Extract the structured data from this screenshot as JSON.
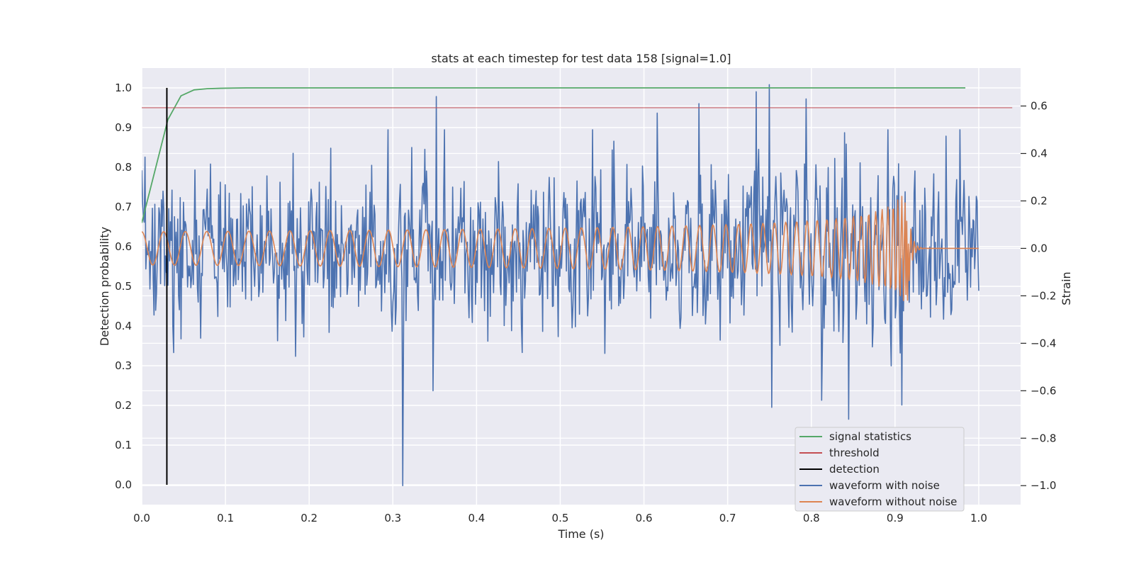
{
  "chart_data": {
    "type": "line",
    "title": "stats at each timestep for test data 158 [signal=1.0]",
    "xlabel": "Time (s)",
    "ylabel": "Detection probability",
    "ylabel_right": "Strain",
    "xlim": [
      0.0,
      1.05
    ],
    "ylim": [
      -0.05,
      1.05
    ],
    "ylim_right": [
      -1.08,
      0.76
    ],
    "x_ticks": [
      "0.0",
      "0.1",
      "0.2",
      "0.3",
      "0.4",
      "0.5",
      "0.6",
      "0.7",
      "0.8",
      "0.9",
      "1.0"
    ],
    "y_ticks": [
      "0.0",
      "0.1",
      "0.2",
      "0.3",
      "0.4",
      "0.5",
      "0.6",
      "0.7",
      "0.8",
      "0.9",
      "1.0"
    ],
    "y_right_ticks": [
      "−1.0",
      "−0.8",
      "−0.6",
      "−0.4",
      "−0.2",
      "0.0",
      "0.2",
      "0.4",
      "0.6"
    ],
    "grid": true,
    "legend_position": "lower-right",
    "colors": {
      "signal": "#55a868",
      "threshold": "#c44e52",
      "detection": "#000000",
      "noisy": "#4c72b0",
      "clean": "#dd8452",
      "plot_bg": "#eaeaf2",
      "grid": "#ffffff"
    },
    "series": [
      {
        "name": "signal statistics",
        "axis": "left",
        "x": [
          0.0,
          0.0156,
          0.0312,
          0.0469,
          0.0625,
          0.0781,
          0.0938,
          0.1094,
          0.125,
          0.2,
          0.3,
          0.4,
          0.5,
          0.6,
          0.7,
          0.8,
          0.9,
          0.984
        ],
        "y": [
          0.66,
          0.79,
          0.92,
          0.98,
          0.995,
          0.998,
          0.999,
          0.9995,
          1.0,
          1.0,
          1.0,
          1.0,
          1.0,
          1.0,
          1.0,
          1.0,
          1.0,
          1.0
        ]
      },
      {
        "name": "threshold",
        "axis": "left",
        "x": [
          0.0,
          1.04
        ],
        "y": [
          0.95,
          0.95
        ]
      },
      {
        "name": "detection",
        "axis": "left",
        "x": [
          0.03,
          0.03
        ],
        "y": [
          0.0,
          1.0
        ]
      },
      {
        "name": "waveform with noise",
        "axis": "right",
        "samples": 1024,
        "x_range": [
          0.0,
          1.0
        ],
        "y_range": [
          -1.0,
          0.69
        ],
        "peaks": [
          {
            "x": 0.312,
            "y": -1.0
          },
          {
            "x": 0.352,
            "y": 0.64
          },
          {
            "x": 0.75,
            "y": 0.69
          },
          {
            "x": 0.734,
            "y": 0.66
          },
          {
            "x": 0.794,
            "y": 0.63
          },
          {
            "x": 0.666,
            "y": 0.61
          },
          {
            "x": 0.616,
            "y": 0.57
          },
          {
            "x": 0.753,
            "y": -0.67
          },
          {
            "x": 0.845,
            "y": -0.72
          },
          {
            "x": 0.908,
            "y": -0.66
          },
          {
            "x": 0.812,
            "y": -0.64
          }
        ]
      },
      {
        "name": "waveform without noise",
        "axis": "right",
        "samples": 1024,
        "x_range": [
          0.0,
          1.0
        ],
        "t_coalescence": 0.915,
        "amplitude_start": 0.07,
        "amplitude_peak": 0.22,
        "ringdown_end": 0.935,
        "y_range": [
          -0.23,
          0.23
        ]
      }
    ]
  }
}
